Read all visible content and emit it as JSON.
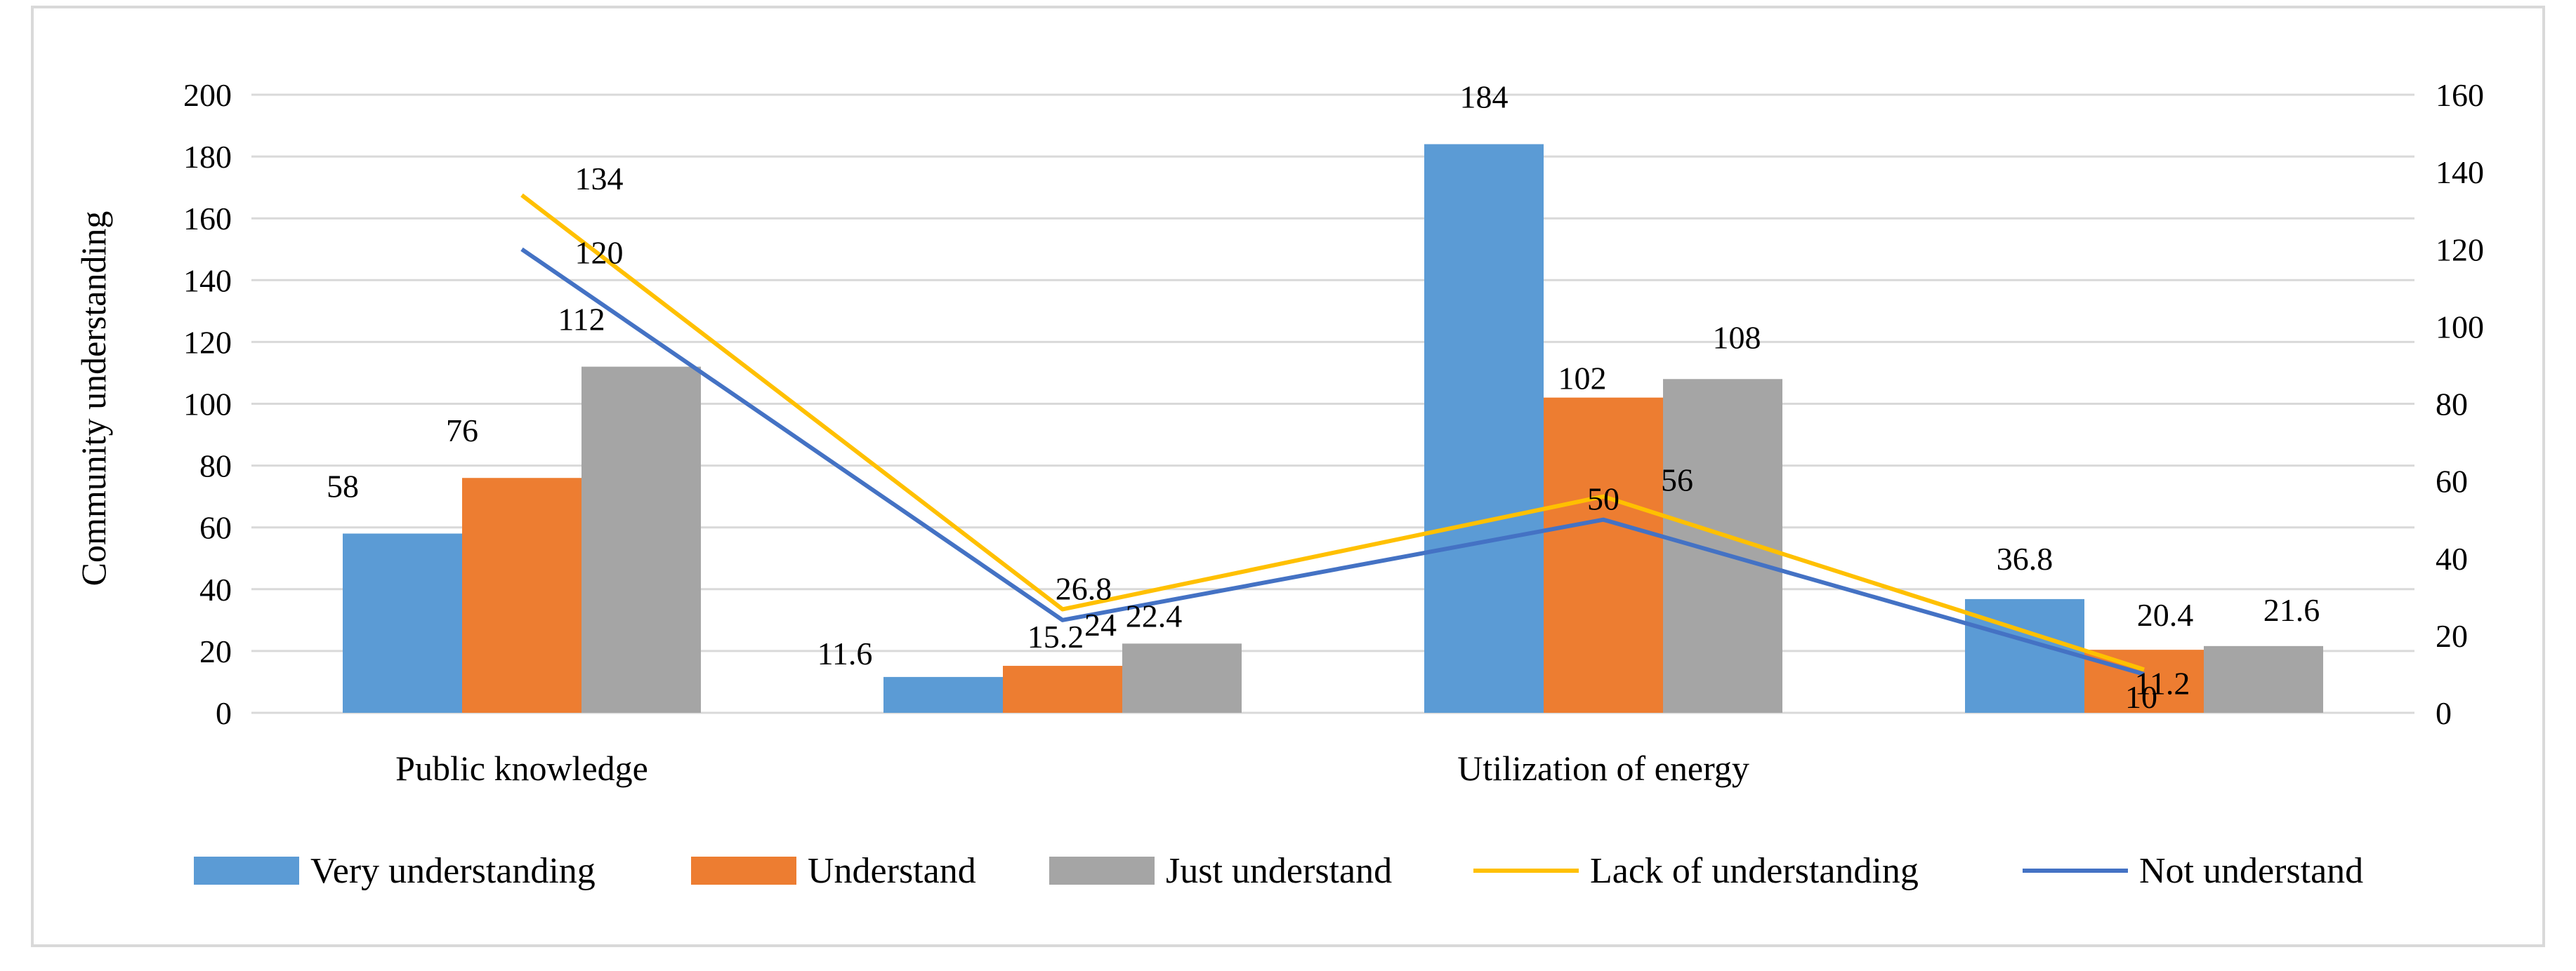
{
  "chart_data": {
    "type": "bar+line",
    "title": "",
    "ylabel": "Community understanding",
    "y2label": "",
    "ylim": [
      0,
      200
    ],
    "y2lim": [
      0,
      160
    ],
    "yticks": [
      "0",
      "20",
      "40",
      "60",
      "80",
      "100",
      "120",
      "140",
      "160",
      "180",
      "200"
    ],
    "y2ticks": [
      "0",
      "20",
      "40",
      "60",
      "80",
      "100",
      "120",
      "140",
      "160"
    ],
    "categories": [
      "Public knowledge",
      "",
      "Utilization of energy",
      ""
    ],
    "bar_series": [
      {
        "name": "Very understanding",
        "color": "#5B9BD5",
        "values": [
          58,
          11.6,
          184,
          36.8
        ],
        "labels": [
          "58",
          "11.6",
          "184",
          "36.8"
        ]
      },
      {
        "name": "Understand",
        "color": "#ED7D31",
        "values": [
          76,
          15.2,
          102,
          20.4
        ],
        "labels": [
          "76",
          "15.2",
          "102",
          "20.4"
        ]
      },
      {
        "name": "Just understand",
        "color": "#A5A5A5",
        "values": [
          112,
          22.4,
          108,
          21.6
        ],
        "labels": [
          "112",
          "22.4",
          "108",
          "21.6"
        ]
      }
    ],
    "line_series": [
      {
        "name": "Lack of understanding",
        "color": "#FFC000",
        "axis": "secondary",
        "values": [
          134,
          26.8,
          56,
          11.2
        ],
        "labels": [
          "134",
          "26.8",
          "56",
          "11.2"
        ]
      },
      {
        "name": "Not understand",
        "color": "#4472C4",
        "axis": "secondary",
        "values": [
          120,
          24,
          50,
          10
        ],
        "labels": [
          "120",
          "24",
          "50",
          "10"
        ]
      }
    ],
    "legend_position": "bottom",
    "grid": true
  }
}
